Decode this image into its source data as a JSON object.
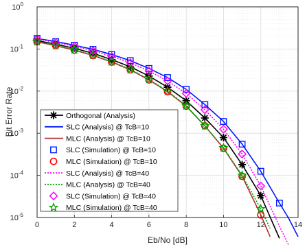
{
  "chart_data": {
    "type": "line",
    "xlabel": "Eb/No [dB]",
    "ylabel": "Bit Error Rate",
    "xlim": [
      0,
      14
    ],
    "ylim_log10": [
      -5,
      0
    ],
    "y_scale": "log",
    "grid": true,
    "legend_position": "bottom-left",
    "x_ticks": [
      "0",
      "2",
      "4",
      "6",
      "8",
      "10",
      "12",
      "14"
    ],
    "y_ticks": [
      {
        "base": "10",
        "exp": "0",
        "log": 0
      },
      {
        "base": "10",
        "exp": "-1",
        "log": -1
      },
      {
        "base": "10",
        "exp": "-2",
        "log": -2
      },
      {
        "base": "10",
        "exp": "-3",
        "log": -3
      },
      {
        "base": "10",
        "exp": "-4",
        "log": -4
      },
      {
        "base": "10",
        "exp": "-5",
        "log": -5
      }
    ],
    "series": [
      {
        "name": "Orthogonal (Analysis)",
        "color": "#000000",
        "line": "solid",
        "marker": "star6",
        "x": [
          0,
          1,
          2,
          3,
          4,
          5,
          6,
          7,
          8,
          9,
          10,
          11,
          12,
          13
        ],
        "y": [
          0.158,
          0.13,
          0.104,
          0.079,
          0.056,
          0.0377,
          0.0228,
          0.0124,
          0.0059,
          0.0023,
          0.00079,
          0.00018,
          3.3e-05,
          3.2e-06
        ]
      },
      {
        "name": "SLC (Analysis) @ TcB=10",
        "color": "#0018ff",
        "line": "solid",
        "marker": "none",
        "x": [
          0,
          1,
          2,
          3,
          4,
          5,
          6,
          7,
          8,
          9,
          10,
          11,
          12,
          13,
          13.5,
          14
        ],
        "y": [
          0.178,
          0.15,
          0.123,
          0.098,
          0.074,
          0.053,
          0.0345,
          0.021,
          0.011,
          0.0048,
          0.0019,
          0.00055,
          0.000125,
          2.2e-05,
          9.5e-06,
          3.5e-06
        ]
      },
      {
        "name": "MLC (Analysis) @ TcB=10",
        "color": "#b03030",
        "line": "solid",
        "marker": "none",
        "x": [
          0,
          1,
          2,
          3,
          4,
          5,
          6,
          7,
          8,
          9,
          10,
          11,
          12,
          12.5
        ],
        "y": [
          0.148,
          0.12,
          0.094,
          0.07,
          0.049,
          0.032,
          0.0185,
          0.0097,
          0.0044,
          0.0015,
          0.00044,
          9.5e-05,
          1.15e-05,
          3.5e-06
        ]
      },
      {
        "name": "SLC (Simulation) @ TcB=10",
        "color": "#0018ff",
        "line": "none",
        "marker": "square",
        "x": [
          0,
          1,
          2,
          3,
          4,
          5,
          6,
          7,
          8,
          9,
          10,
          11,
          12,
          13
        ],
        "y": [
          0.178,
          0.15,
          0.123,
          0.098,
          0.074,
          0.053,
          0.0345,
          0.021,
          0.011,
          0.0048,
          0.0019,
          0.00055,
          0.000125,
          2.2e-05
        ]
      },
      {
        "name": "MLC (Simulation) @ TcB=10",
        "color": "#ff0000",
        "line": "none",
        "marker": "circle",
        "x": [
          0,
          1,
          2,
          3,
          4,
          5,
          6,
          7,
          8,
          9,
          10,
          11,
          12
        ],
        "y": [
          0.148,
          0.12,
          0.094,
          0.07,
          0.049,
          0.032,
          0.0185,
          0.0097,
          0.0044,
          0.0015,
          0.00044,
          9.5e-05,
          1.15e-05
        ]
      },
      {
        "name": "SLC (Analysis) @ TcB=40",
        "color": "#ff00ff",
        "line": "dotted",
        "marker": "none",
        "x": [
          0,
          1,
          2,
          3,
          4,
          5,
          6,
          7,
          8,
          9,
          10,
          11,
          12,
          13,
          13.5
        ],
        "y": [
          0.172,
          0.143,
          0.116,
          0.09,
          0.067,
          0.047,
          0.03,
          0.0175,
          0.0088,
          0.0036,
          0.00125,
          0.00032,
          5.6e-05,
          6.2e-06,
          2.2e-06
        ]
      },
      {
        "name": "MLC (Analysis) @ TcB=40",
        "color": "#00a000",
        "line": "dotted",
        "marker": "none",
        "x": [
          0,
          1,
          2,
          3,
          4,
          5,
          6,
          7,
          8,
          9,
          10,
          11,
          12,
          12.5
        ],
        "y": [
          0.15,
          0.122,
          0.096,
          0.072,
          0.05,
          0.033,
          0.019,
          0.01,
          0.0045,
          0.0015,
          0.00045,
          0.0001,
          1.6e-05,
          5.5e-06
        ]
      },
      {
        "name": "SLC (Simulation) @ TcB=40",
        "color": "#ff00ff",
        "line": "none",
        "marker": "diamond",
        "x": [
          0,
          1,
          2,
          3,
          4,
          5,
          6,
          7,
          8,
          9,
          10,
          11,
          12
        ],
        "y": [
          0.172,
          0.143,
          0.116,
          0.09,
          0.067,
          0.047,
          0.03,
          0.0175,
          0.0088,
          0.0036,
          0.00125,
          0.00032,
          5.6e-05
        ]
      },
      {
        "name": "MLC (Simulation) @ TcB=40",
        "color": "#00a000",
        "line": "none",
        "marker": "pentagram",
        "x": [
          0,
          1,
          2,
          3,
          4,
          5,
          6,
          7,
          8,
          9,
          10,
          11,
          12
        ],
        "y": [
          0.15,
          0.122,
          0.096,
          0.072,
          0.05,
          0.033,
          0.019,
          0.01,
          0.0045,
          0.0015,
          0.00045,
          0.0001,
          1.6e-05
        ]
      }
    ]
  }
}
